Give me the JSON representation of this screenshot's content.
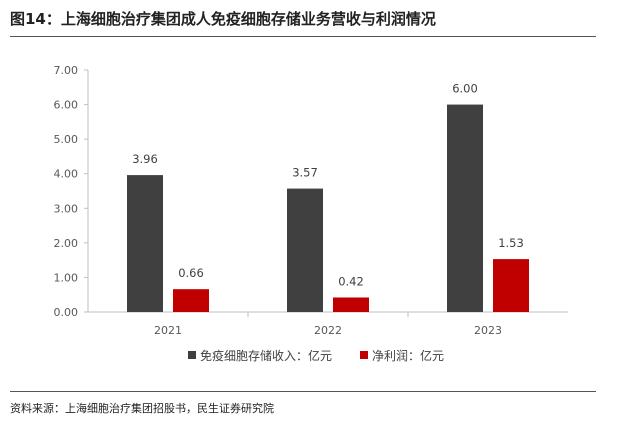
{
  "title": "图14：上海细胞治疗集团成人免疫细胞存储业务营收与利润情况",
  "source": "资料来源：上海细胞治疗集团招股书，民生证券研究院",
  "chart_data": {
    "type": "bar",
    "categories": [
      "2021",
      "2022",
      "2023"
    ],
    "series": [
      {
        "name": "免疫细胞存储收入：亿元",
        "values": [
          3.96,
          3.57,
          6.0
        ],
        "color": "#404040"
      },
      {
        "name": "净利润：亿元",
        "values": [
          0.66,
          0.42,
          1.53
        ],
        "color": "#c00000"
      }
    ],
    "ylim": [
      0,
      7
    ],
    "yticks": [
      "0.00",
      "1.00",
      "2.00",
      "3.00",
      "4.00",
      "5.00",
      "6.00",
      "7.00"
    ],
    "data_labels": [
      [
        "3.96",
        "3.57",
        "6.00"
      ],
      [
        "0.66",
        "0.42",
        "1.53"
      ]
    ],
    "legend_position": "bottom",
    "grid": false
  }
}
